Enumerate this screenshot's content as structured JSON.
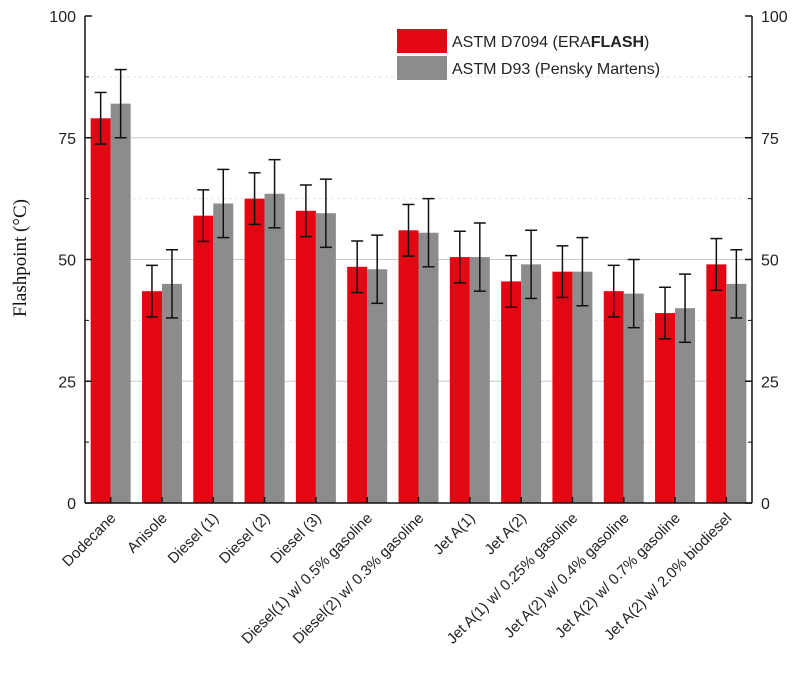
{
  "chart_data": {
    "type": "bar",
    "ylabel": "Flashpoint (°C)",
    "ylim": [
      0,
      100
    ],
    "yticks": [
      0,
      25,
      50,
      75,
      100
    ],
    "right_axis_ticks": true,
    "grid": "horizontal",
    "legend_position": "top-right",
    "categories": [
      "Dodecane",
      "Anisole",
      "Diesel (1)",
      "Diesel (2)",
      "Diesel (3)",
      "Diesel(1) w/ 0.5% gasoline",
      "Diesel(2) w/ 0.3% gasoline",
      "Jet A(1)",
      "Jet A(2)",
      "Jet A(1) w/ 0.25% gasoline",
      "Jet A(2) w/ 0.4% gasoline",
      "Jet A(2) w/ 0.7% gasoline",
      "Jet A(2) w/ 2.0% biodiesel"
    ],
    "series": [
      {
        "name_prefix": "ASTM D7094 (ERA",
        "name_bold": "FLASH",
        "name_suffix": ")",
        "color": "#e30613",
        "values": [
          79,
          43.5,
          59,
          62.5,
          60,
          48.5,
          56,
          50.5,
          45.5,
          47.5,
          43.5,
          39,
          49
        ],
        "error": [
          5.3,
          5.3,
          5.3,
          5.3,
          5.3,
          5.3,
          5.3,
          5.3,
          5.3,
          5.3,
          5.3,
          5.3,
          5.3
        ]
      },
      {
        "name": "ASTM D93 (Pensky Martens)",
        "color": "#8c8c8c",
        "values": [
          82,
          45,
          61.5,
          63.5,
          59.5,
          48,
          55.5,
          50.5,
          49,
          47.5,
          43,
          40,
          45
        ],
        "error": [
          7,
          7,
          7,
          7,
          7,
          7,
          7,
          7,
          7,
          7,
          7,
          7,
          7
        ]
      }
    ]
  }
}
